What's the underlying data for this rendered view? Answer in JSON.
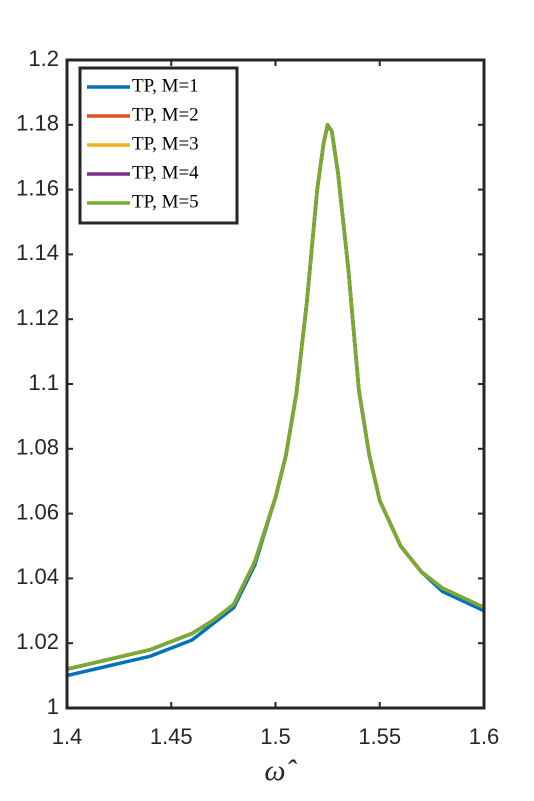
{
  "chart_data": {
    "type": "line",
    "x_label": "ω̂",
    "x": [
      1.4,
      1.42,
      1.44,
      1.46,
      1.47,
      1.48,
      1.49,
      1.5,
      1.505,
      1.51,
      1.515,
      1.52,
      1.523,
      1.525,
      1.527,
      1.53,
      1.535,
      1.54,
      1.545,
      1.55,
      1.56,
      1.57,
      1.58,
      1.59,
      1.6
    ],
    "series": [
      {
        "name": "TP, M=1",
        "color": "#0072BD",
        "values": [
          1.01,
          1.013,
          1.016,
          1.021,
          1.026,
          1.031,
          1.044,
          1.065,
          1.078,
          1.097,
          1.125,
          1.16,
          1.174,
          1.18,
          1.178,
          1.165,
          1.135,
          1.098,
          1.078,
          1.064,
          1.05,
          1.042,
          1.036,
          1.033,
          1.03
        ]
      },
      {
        "name": "TP, M=2",
        "color": "#D95319",
        "values": [
          1.012,
          1.015,
          1.018,
          1.023,
          1.027,
          1.032,
          1.045,
          1.065,
          1.078,
          1.097,
          1.125,
          1.16,
          1.174,
          1.18,
          1.178,
          1.165,
          1.135,
          1.098,
          1.078,
          1.064,
          1.05,
          1.042,
          1.037,
          1.034,
          1.031
        ]
      },
      {
        "name": "TP, M=3",
        "color": "#EDB120",
        "values": [
          1.012,
          1.015,
          1.018,
          1.023,
          1.027,
          1.032,
          1.045,
          1.065,
          1.078,
          1.097,
          1.125,
          1.16,
          1.174,
          1.18,
          1.178,
          1.165,
          1.135,
          1.098,
          1.078,
          1.064,
          1.05,
          1.042,
          1.037,
          1.034,
          1.031
        ]
      },
      {
        "name": "TP, M=4",
        "color": "#7E2F8E",
        "values": [
          1.012,
          1.015,
          1.018,
          1.023,
          1.027,
          1.032,
          1.045,
          1.065,
          1.078,
          1.097,
          1.125,
          1.16,
          1.174,
          1.18,
          1.178,
          1.165,
          1.135,
          1.098,
          1.078,
          1.064,
          1.05,
          1.042,
          1.037,
          1.034,
          1.031
        ]
      },
      {
        "name": "TP, M=5",
        "color": "#77AC30",
        "values": [
          1.012,
          1.015,
          1.018,
          1.023,
          1.027,
          1.032,
          1.045,
          1.065,
          1.078,
          1.097,
          1.125,
          1.16,
          1.174,
          1.18,
          1.178,
          1.165,
          1.135,
          1.098,
          1.078,
          1.064,
          1.05,
          1.042,
          1.037,
          1.034,
          1.031
        ]
      }
    ],
    "xlim": [
      1.4,
      1.6
    ],
    "xticks": [
      1.4,
      1.45,
      1.5,
      1.55,
      1.6
    ],
    "ylim": [
      1,
      1.2
    ],
    "yticks": [
      1,
      1.02,
      1.04,
      1.06,
      1.08,
      1.1,
      1.12,
      1.14,
      1.16,
      1.18,
      1.2
    ],
    "grid": false,
    "legend": "northwest"
  }
}
